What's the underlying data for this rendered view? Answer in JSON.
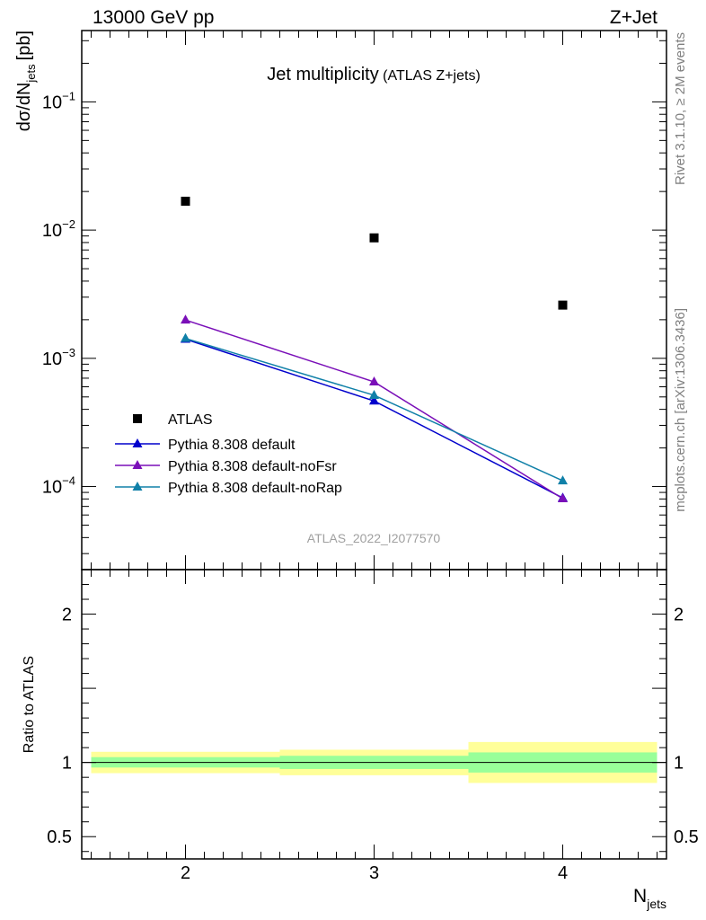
{
  "header": {
    "left_label": "13000 GeV pp",
    "right_label": "Z+Jet"
  },
  "side_labels": {
    "rivet": "Rivet 3.1.10, ≥ 2M events",
    "mcplots": "mcplots.cern.ch [arXiv:1306.3436]"
  },
  "chart_data": {
    "type": "scatter",
    "title": "Jet multiplicity",
    "title_suffix": "(ATLAS Z+jets)",
    "analysis_id": "ATLAS_2022_I2077570",
    "xlabel": "N",
    "xlabel_sub": "jets",
    "ylabel": "dσ/dN",
    "ylabel_sub": "jets",
    "ylabel_unit": "[pb]",
    "xlim": [
      1.45,
      4.55
    ],
    "ylim": [
      2.25e-05,
      0.36
    ],
    "yscale": "log",
    "xticks": [
      2,
      3,
      4
    ],
    "yticks": [
      {
        "value": 0.1,
        "base": "10",
        "exp": "−1"
      },
      {
        "value": 0.01,
        "base": "10",
        "exp": "−2"
      },
      {
        "value": 0.001,
        "base": "10",
        "exp": "−3"
      },
      {
        "value": 0.0001,
        "base": "10",
        "exp": "−4"
      }
    ],
    "legend_position": "lower-left",
    "data": {
      "name": "ATLAS",
      "color": "#000000",
      "x": [
        2,
        3,
        4
      ],
      "y": [
        0.0168,
        0.0087,
        0.0026
      ]
    },
    "series": [
      {
        "name": "Pythia 8.308 default",
        "color": "#0000cc",
        "x": [
          2,
          3,
          4
        ],
        "y": [
          0.00141,
          0.000465,
          8.15e-05
        ]
      },
      {
        "name": "Pythia 8.308 default-noFsr",
        "color": "#7a0fb8",
        "x": [
          2,
          3,
          4
        ],
        "y": [
          0.00199,
          0.000655,
          8.05e-05
        ]
      },
      {
        "name": "Pythia 8.308 default-noRap",
        "color": "#1080a8",
        "x": [
          2,
          3,
          4
        ],
        "y": [
          0.00143,
          0.000515,
          0.000111
        ]
      }
    ],
    "ratio": {
      "ylabel": "Ratio to ATLAS",
      "ylim": [
        0.35,
        2.3
      ],
      "yticks": [
        0.5,
        1,
        2
      ],
      "ytick_labels": [
        "0.5",
        "1",
        "2"
      ],
      "green_color": "#99ff99",
      "yellow_color": "#ffff99",
      "bins": [
        {
          "x0": 1.5,
          "x1": 2.5,
          "green": [
            0.966,
            1.036
          ],
          "yellow": [
            0.928,
            1.072
          ]
        },
        {
          "x0": 2.5,
          "x1": 3.5,
          "green": [
            0.956,
            1.045
          ],
          "yellow": [
            0.914,
            1.086
          ]
        },
        {
          "x0": 3.5,
          "x1": 4.5,
          "green": [
            0.932,
            1.068
          ],
          "yellow": [
            0.862,
            1.138
          ]
        }
      ]
    }
  }
}
